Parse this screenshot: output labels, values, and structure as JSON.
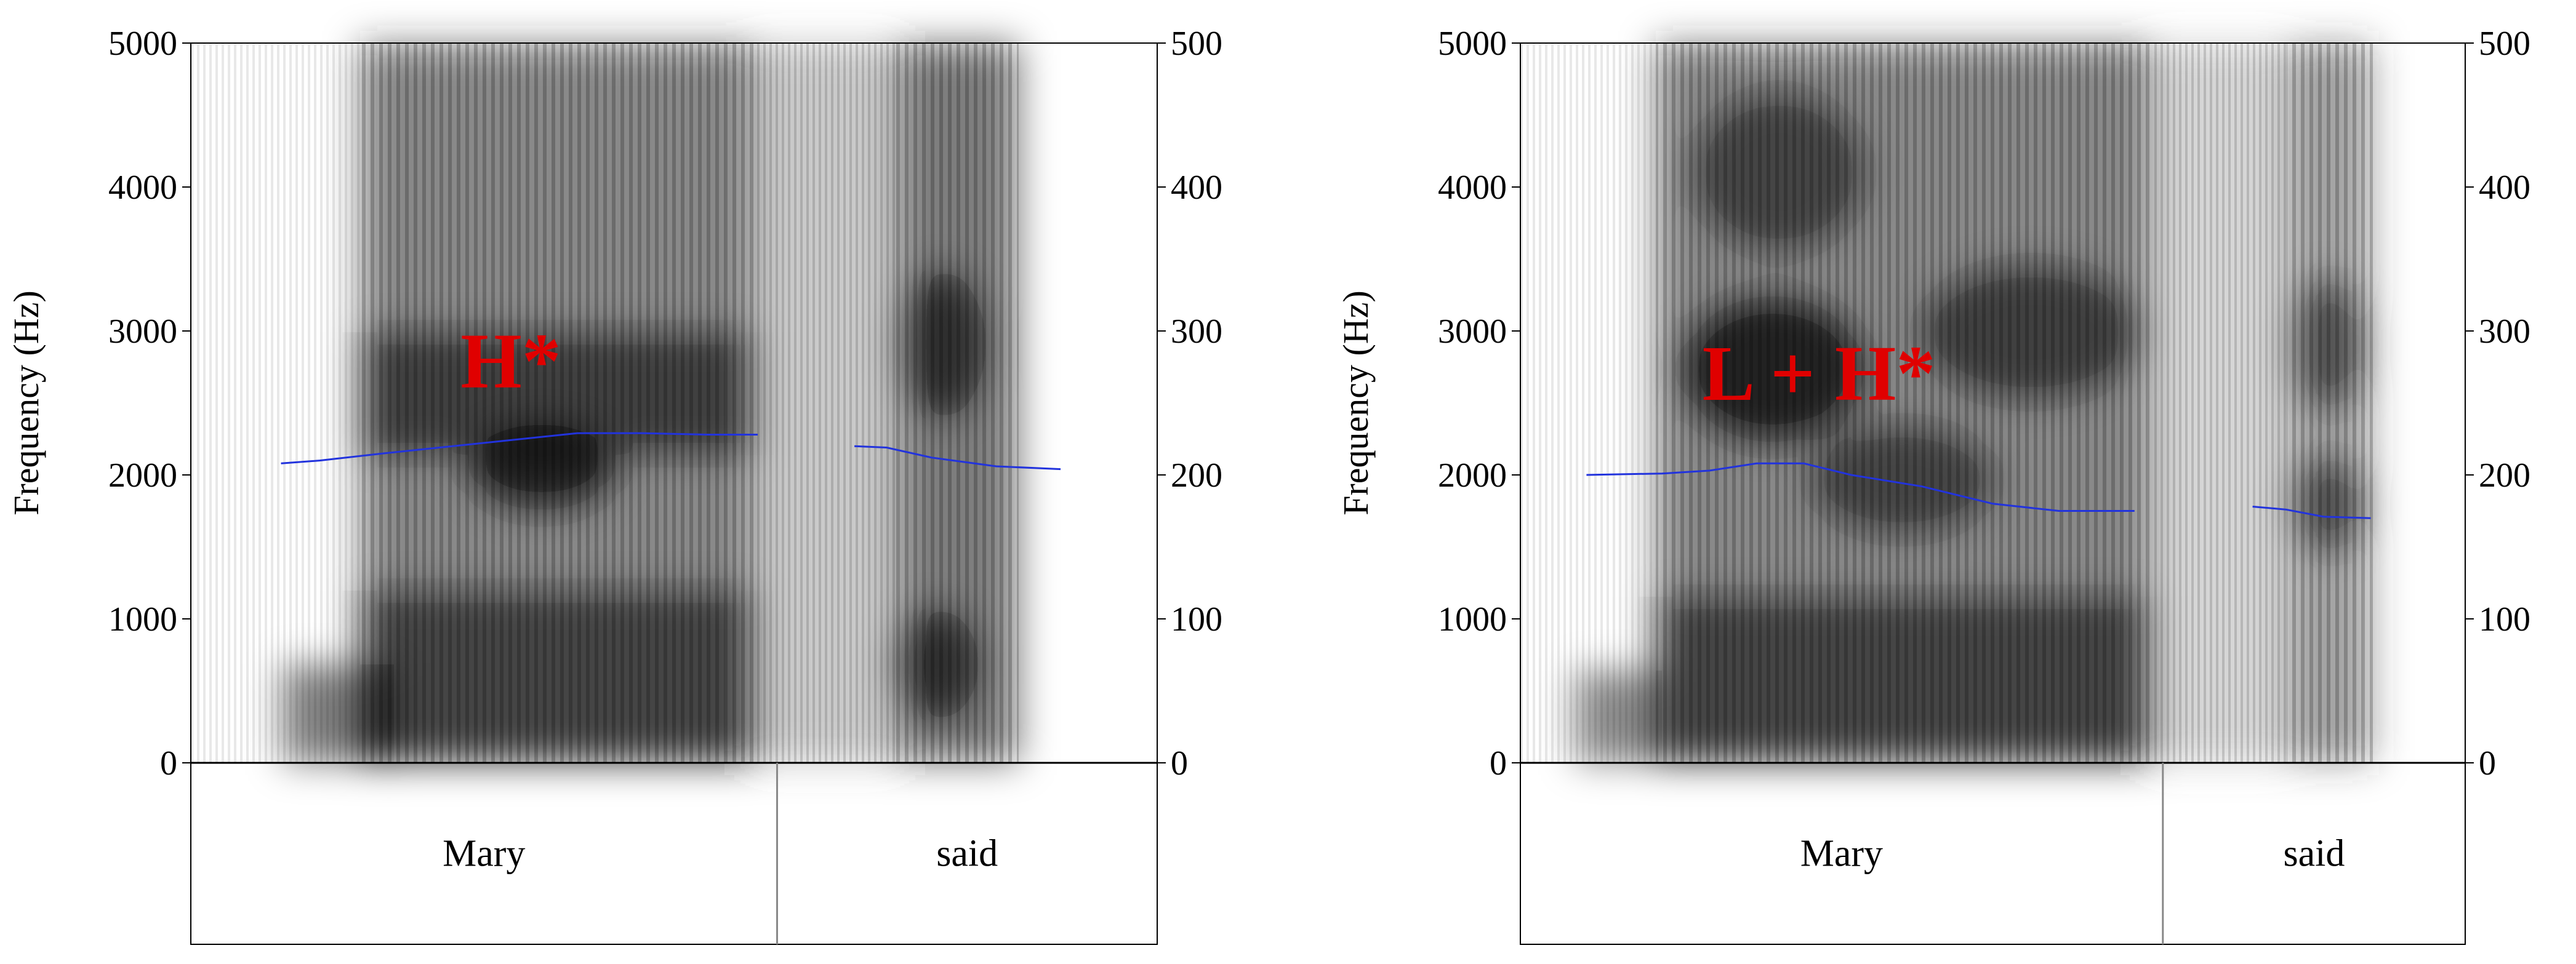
{
  "chart_data": [
    {
      "type": "spectrogram",
      "panel": "left",
      "ylabel": "Frequency (Hz)",
      "ylim": [
        0,
        5000
      ],
      "yticks": [
        0,
        1000,
        2000,
        3000,
        4000,
        5000
      ],
      "y2lim": [
        0,
        500
      ],
      "y2ticks": [
        0,
        100,
        200,
        300,
        400,
        500
      ],
      "pitch_contour": {
        "color": "#2233dd",
        "segments": [
          {
            "x": [
              0.14,
              0.2,
              0.3,
              0.45,
              0.6,
              0.7,
              0.8,
              0.88
            ],
            "y": [
              208,
              210,
              215,
              222,
              229,
              229,
              228,
              228
            ]
          },
          {
            "x": [
              1.03,
              1.08,
              1.15,
              1.25,
              1.35
            ],
            "y": [
              220,
              219,
              212,
              206,
              204
            ]
          }
        ]
      },
      "annotation": "H*",
      "words": [
        {
          "label": "Mary",
          "start": 0.0,
          "end": 0.91
        },
        {
          "label": "said",
          "start": 0.91,
          "end": 1.5
        }
      ],
      "duration": 1.5
    },
    {
      "type": "spectrogram",
      "panel": "right",
      "ylabel": "Frequency (Hz)",
      "ylim": [
        0,
        5000
      ],
      "yticks": [
        0,
        1000,
        2000,
        3000,
        4000,
        5000
      ],
      "y2lim": [
        0,
        500
      ],
      "y2ticks": [
        0,
        100,
        200,
        300,
        400,
        500
      ],
      "pitch_contour": {
        "color": "#2233dd",
        "segments": [
          {
            "x": [
              0.14,
              0.3,
              0.4,
              0.5,
              0.6,
              0.7,
              0.85,
              1.0,
              1.14,
              1.3
            ],
            "y": [
              200,
              201,
              203,
              208,
              208,
              200,
              192,
              180,
              175,
              175
            ]
          },
          {
            "x": [
              1.55,
              1.62,
              1.7,
              1.8
            ],
            "y": [
              178,
              176,
              171,
              170
            ]
          }
        ]
      },
      "annotation": "L + H*",
      "words": [
        {
          "label": "Mary",
          "start": 0.0,
          "end": 1.36
        },
        {
          "label": "said",
          "start": 1.36,
          "end": 2.0
        }
      ],
      "duration": 2.0
    }
  ]
}
